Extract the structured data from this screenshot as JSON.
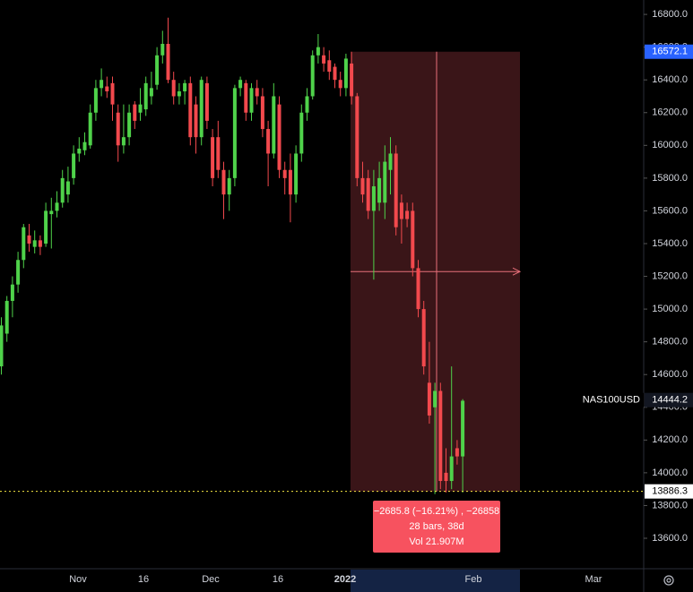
{
  "chart_data": {
    "type": "candlestick",
    "symbol": "NAS100USD",
    "open": [
      14650,
      14850,
      15050,
      15150,
      15300,
      15450,
      15380,
      15420,
      15400,
      15580,
      15600,
      15650,
      15700,
      15800,
      15950,
      15970,
      16000,
      16200,
      16350,
      16360,
      16380,
      16200,
      16000,
      16050,
      16250,
      16200,
      16220,
      16300,
      16370,
      16550,
      16620,
      16400,
      16300,
      16330,
      16380,
      16250,
      16050,
      16380,
      16050,
      16050,
      15850,
      15700,
      15800,
      16350,
      16380,
      16200,
      16350,
      16300,
      16100,
      15950,
      16250,
      15850,
      15850,
      15700,
      15950,
      16200,
      16300,
      16550,
      16550,
      16520,
      16480,
      16400,
      16350,
      16500,
      16300,
      15800,
      15800,
      15600,
      15650,
      15650,
      15850,
      15950,
      15650,
      15600,
      15600,
      15250,
      15000,
      14550,
      14400,
      14500,
      14000,
      13950,
      14150,
      14100
    ],
    "high": [
      14950,
      15080,
      15200,
      15350,
      15520,
      15520,
      15480,
      15450,
      15650,
      15680,
      15720,
      15850,
      15870,
      16000,
      16050,
      16080,
      16250,
      16400,
      16470,
      16420,
      16420,
      16250,
      16250,
      16250,
      16270,
      16350,
      16420,
      16450,
      16600,
      16700,
      16780,
      16450,
      16380,
      16400,
      16420,
      16300,
      16420,
      16420,
      16100,
      16150,
      15900,
      15850,
      16370,
      16420,
      16400,
      16380,
      16400,
      16350,
      16150,
      16380,
      16300,
      15900,
      15950,
      16000,
      16250,
      16350,
      16580,
      16680,
      16600,
      16580,
      16500,
      16450,
      16560,
      16572,
      16320,
      15900,
      15850,
      15850,
      15900,
      16000,
      16050,
      16000,
      15700,
      15650,
      15650,
      15300,
      15050,
      14800,
      14550,
      14550,
      14150,
      14650,
      14200,
      14450
    ],
    "low": [
      14600,
      14800,
      14950,
      15100,
      15250,
      15350,
      15340,
      15330,
      15380,
      15370,
      15560,
      15620,
      15650,
      15760,
      15900,
      15940,
      15980,
      16150,
      16300,
      16290,
      16150,
      15900,
      15950,
      16000,
      16100,
      16150,
      16180,
      16250,
      16340,
      16500,
      16380,
      16250,
      16250,
      16250,
      16000,
      15950,
      16000,
      16100,
      15750,
      15800,
      15550,
      15600,
      15750,
      16300,
      16150,
      16150,
      16250,
      16050,
      15750,
      15920,
      15800,
      15700,
      15530,
      15650,
      15900,
      16150,
      16280,
      16500,
      16450,
      16400,
      16350,
      16300,
      16300,
      16250,
      15750,
      15650,
      15550,
      15180,
      15600,
      15550,
      15700,
      15450,
      15400,
      15500,
      15200,
      14950,
      14600,
      14300,
      13870,
      13900,
      13880,
      13900,
      14050,
      13880
    ],
    "close": [
      14900,
      15050,
      15150,
      15300,
      15500,
      15400,
      15420,
      15380,
      15600,
      15600,
      15650,
      15800,
      15780,
      15950,
      15980,
      16020,
      16200,
      16350,
      16400,
      16330,
      16250,
      16000,
      16050,
      16200,
      16150,
      16250,
      16380,
      16350,
      16550,
      16620,
      16400,
      16300,
      16330,
      16380,
      16050,
      16050,
      16400,
      16150,
      15800,
      15850,
      15700,
      15800,
      16350,
      16400,
      16200,
      16350,
      16300,
      16100,
      15950,
      16300,
      15850,
      15800,
      15700,
      15950,
      16200,
      16300,
      16550,
      16600,
      16500,
      16450,
      16400,
      16350,
      16530,
      16300,
      15800,
      15700,
      15600,
      15750,
      15800,
      15900,
      15950,
      15500,
      15550,
      15550,
      15250,
      15000,
      14650,
      14350,
      14500,
      13950,
      13950,
      14100,
      14100,
      14440
    ],
    "up_color": "#4fd24a",
    "down_color": "#f2494d",
    "ylim": [
      13414,
      16888
    ],
    "yticks": [
      {
        "value": 13600,
        "label": "13600.0"
      },
      {
        "value": 13800,
        "label": "13800.0"
      },
      {
        "value": 14000,
        "label": "14000.0"
      },
      {
        "value": 14200,
        "label": "14200.0"
      },
      {
        "value": 14400,
        "label": "14400.0"
      },
      {
        "value": 14600,
        "label": "14600.0"
      },
      {
        "value": 14800,
        "label": "14800.0"
      },
      {
        "value": 15000,
        "label": "15000.0"
      },
      {
        "value": 15200,
        "label": "15200.0"
      },
      {
        "value": 15400,
        "label": "15400.0"
      },
      {
        "value": 15600,
        "label": "15600.0"
      },
      {
        "value": 15800,
        "label": "15800.0"
      },
      {
        "value": 16000,
        "label": "16000.0"
      },
      {
        "value": 16200,
        "label": "16200.0"
      },
      {
        "value": 16400,
        "label": "16400.0"
      },
      {
        "value": 16600,
        "label": "16600.0"
      },
      {
        "value": 16800,
        "label": "16800.0"
      }
    ],
    "x_labels": [
      "Nov",
      "16",
      "Dec",
      "16",
      "2022",
      "Feb",
      "Mar"
    ],
    "last_price": 14444.2,
    "crosshair_price": 13886.3,
    "measure": {
      "from": 16572.1,
      "to": 13886.3,
      "lines": [
        "−2685.8 (−16.21%) , −26858",
        "28 bars, 38d",
        "Vol 21.907M"
      ]
    }
  }
}
